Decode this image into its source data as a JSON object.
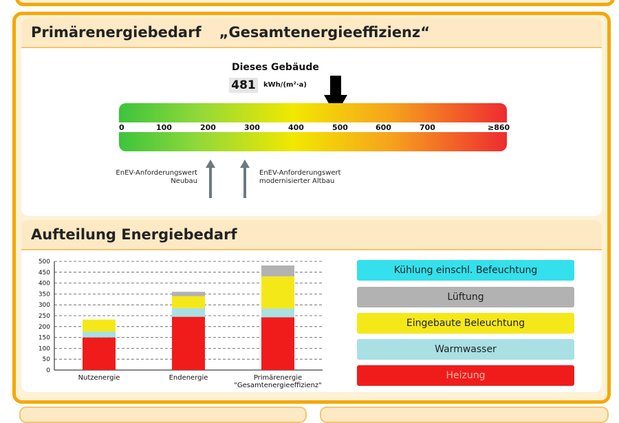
{
  "panel1": {
    "title_a": "Primärenergiebedarf",
    "title_b": "„Gesamtenergieeffizienz“",
    "marker_title": "Dieses Gebäude",
    "marker_value": "481",
    "marker_unit": "kWh/(m²·a)",
    "scale_ticks": [
      "0",
      "100",
      "200",
      "300",
      "400",
      "500",
      "600",
      "700",
      "≥860"
    ],
    "req_neubau_line1": "EnEV-Anforderungswert",
    "req_neubau_line2": "Neubau",
    "req_altbau_line1": "EnEV-Anforderungswert",
    "req_altbau_line2": "modernisierter Altbau"
  },
  "panel2": {
    "title": "Aufteilung Energiebedarf",
    "legend": [
      {
        "label": "Kühlung einschl. Befeuchtung",
        "color": "#33e0ec"
      },
      {
        "label": "Lüftung",
        "color": "#b2b2b2"
      },
      {
        "label": "Eingebaute Beleuchtung",
        "color": "#f5e819"
      },
      {
        "label": "Warmwasser",
        "color": "#a8e0e4"
      },
      {
        "label": "Heizung",
        "color": "#f01c1c",
        "text_color": "#f6b7a4"
      }
    ]
  },
  "chart_data": {
    "type": "bar",
    "stacked": true,
    "categories": [
      "Nutzenergie",
      "Endenergie",
      "Primärenergie\n\"Gesamtenergieeffizienz\""
    ],
    "series": [
      {
        "name": "Heizung",
        "color": "#f01c1c",
        "values": [
          150,
          245,
          243
        ]
      },
      {
        "name": "Warmwasser",
        "color": "#a8e0e4",
        "values": [
          27,
          40,
          40
        ]
      },
      {
        "name": "Eingebaute Beleuchtung",
        "color": "#f5e819",
        "values": [
          55,
          55,
          148
        ]
      },
      {
        "name": "Lüftung",
        "color": "#b2b2b2",
        "values": [
          0,
          20,
          50
        ]
      },
      {
        "name": "Kühlung einschl. Befeuchtung",
        "color": "#33e0ec",
        "values": [
          0,
          0,
          0
        ]
      }
    ],
    "yticks": [
      "0",
      "50",
      "100",
      "150",
      "200",
      "250",
      "300",
      "350",
      "400",
      "450",
      "500"
    ],
    "ylim": [
      0,
      500
    ],
    "grid": true
  }
}
